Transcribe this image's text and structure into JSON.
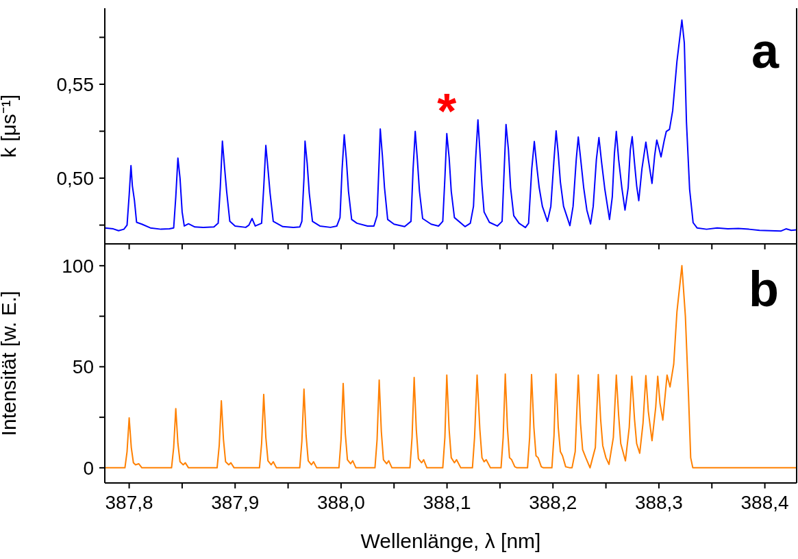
{
  "chart_data": [
    {
      "type": "line",
      "ylabel": "k [μs⁻¹]",
      "tick_labels": "y",
      "color": "#0000ff",
      "xlim": [
        387.777,
        388.43
      ],
      "xticks": [
        {
          "value": 387.8,
          "label": null
        },
        {
          "value": 387.85,
          "label": null
        },
        {
          "value": 387.9,
          "label": null
        },
        {
          "value": 387.95,
          "label": null
        },
        {
          "value": 388.0,
          "label": null
        },
        {
          "value": 388.05,
          "label": null
        },
        {
          "value": 388.1,
          "label": null
        },
        {
          "value": 388.15,
          "label": null
        },
        {
          "value": 388.2,
          "label": null
        },
        {
          "value": 388.25,
          "label": null
        },
        {
          "value": 388.3,
          "label": null
        },
        {
          "value": 388.35,
          "label": null
        },
        {
          "value": 388.4,
          "label": null
        }
      ],
      "ylim": [
        0.465,
        0.5905
      ],
      "yticks": [
        {
          "value": 0.475,
          "label": null
        },
        {
          "value": 0.5,
          "label": "0,50"
        },
        {
          "value": 0.525,
          "label": null
        },
        {
          "value": 0.55,
          "label": "0,55"
        },
        {
          "value": 0.575,
          "label": null
        }
      ],
      "annotations": [
        "a",
        {
          "text": "*",
          "x": 388.0998,
          "y": 0.5237
        }
      ],
      "x": [
        387.777,
        387.785,
        387.79,
        387.795,
        387.798,
        387.8,
        387.8017,
        387.803,
        387.805,
        387.807,
        387.812,
        387.82,
        387.83,
        387.838,
        387.842,
        387.844,
        387.846,
        387.848,
        387.85,
        387.852,
        387.856,
        387.862,
        387.87,
        387.88,
        387.884,
        387.886,
        387.888,
        387.89,
        387.892,
        387.895,
        387.9,
        387.91,
        387.913,
        387.916,
        387.919,
        387.925,
        387.927,
        387.929,
        387.931,
        387.933,
        387.936,
        387.945,
        387.955,
        387.961,
        387.963,
        387.965,
        387.966,
        387.968,
        387.97,
        387.973,
        387.98,
        387.99,
        387.996,
        387.999,
        388.001,
        388.003,
        388.005,
        388.007,
        388.01,
        388.015,
        388.025,
        388.031,
        388.034,
        388.036,
        388.037,
        388.039,
        388.041,
        388.044,
        388.05,
        388.06,
        388.066,
        388.068,
        388.07,
        388.072,
        388.074,
        388.077,
        388.085,
        388.092,
        388.096,
        388.098,
        388.0998,
        388.102,
        388.104,
        388.107,
        388.117,
        388.122,
        388.125,
        388.127,
        388.1292,
        388.131,
        388.133,
        388.135,
        388.14,
        388.1475,
        388.152,
        388.154,
        388.1557,
        388.158,
        388.16,
        388.163,
        388.168,
        388.174,
        388.177,
        388.18,
        388.1824,
        388.185,
        388.187,
        388.19,
        388.1948,
        388.198,
        388.201,
        388.203,
        388.205,
        388.207,
        388.21,
        388.216,
        388.219,
        388.222,
        388.2239,
        388.226,
        388.229,
        388.232,
        388.2355,
        388.238,
        388.241,
        388.2434,
        388.246,
        388.249,
        388.2534,
        388.256,
        388.258,
        388.2598,
        388.262,
        388.265,
        388.268,
        388.271,
        388.273,
        388.2748,
        388.277,
        388.279,
        388.281,
        388.284,
        388.2877,
        388.29,
        388.2935,
        388.296,
        388.298,
        388.3,
        388.302,
        388.305,
        388.307,
        388.31,
        388.313,
        388.317,
        388.3217,
        388.324,
        388.326,
        388.329,
        388.3323,
        388.336,
        388.345,
        388.355,
        388.365,
        388.375,
        388.385,
        388.395,
        388.405,
        388.415,
        388.42,
        388.425,
        388.43
      ],
      "values": [
        0.4735,
        0.473,
        0.472,
        0.4728,
        0.475,
        0.491,
        0.5067,
        0.496,
        0.488,
        0.4765,
        0.4755,
        0.4735,
        0.4728,
        0.473,
        0.4735,
        0.49,
        0.5107,
        0.5,
        0.482,
        0.4745,
        0.4757,
        0.474,
        0.4738,
        0.474,
        0.476,
        0.495,
        0.5197,
        0.506,
        0.493,
        0.477,
        0.4745,
        0.4738,
        0.475,
        0.4785,
        0.4745,
        0.476,
        0.495,
        0.5174,
        0.505,
        0.492,
        0.477,
        0.4742,
        0.4738,
        0.474,
        0.477,
        0.5,
        0.5197,
        0.508,
        0.492,
        0.477,
        0.4745,
        0.4738,
        0.4745,
        0.479,
        0.505,
        0.5231,
        0.51,
        0.493,
        0.478,
        0.476,
        0.4745,
        0.4745,
        0.48,
        0.51,
        0.5262,
        0.512,
        0.495,
        0.478,
        0.4755,
        0.4742,
        0.477,
        0.505,
        0.5249,
        0.51,
        0.493,
        0.4785,
        0.4755,
        0.4745,
        0.477,
        0.5,
        0.5237,
        0.511,
        0.493,
        0.479,
        0.4742,
        0.476,
        0.485,
        0.51,
        0.531,
        0.515,
        0.496,
        0.482,
        0.4765,
        0.4745,
        0.477,
        0.505,
        0.5286,
        0.515,
        0.495,
        0.48,
        0.476,
        0.4737,
        0.476,
        0.505,
        0.5195,
        0.505,
        0.495,
        0.485,
        0.477,
        0.485,
        0.51,
        0.5252,
        0.513,
        0.498,
        0.485,
        0.4747,
        0.485,
        0.51,
        0.5219,
        0.511,
        0.495,
        0.483,
        0.4756,
        0.485,
        0.51,
        0.5216,
        0.508,
        0.494,
        0.478,
        0.49,
        0.513,
        0.5249,
        0.51,
        0.495,
        0.483,
        0.495,
        0.515,
        0.5221,
        0.508,
        0.496,
        0.488,
        0.505,
        0.5192,
        0.51,
        0.4972,
        0.512,
        0.5203,
        0.516,
        0.5113,
        0.52,
        0.5249,
        0.526,
        0.5359,
        0.562,
        0.5842,
        0.572,
        0.53,
        0.494,
        0.4763,
        0.4735,
        0.4728,
        0.4735,
        0.473,
        0.4732,
        0.4728,
        0.4722,
        0.472,
        0.4718,
        0.473,
        0.4722,
        0.4725
      ]
    },
    {
      "type": "line",
      "ylabel": "Intensität [w. E.]",
      "xlabel": "Wellenlänge, λ [nm]",
      "color": "#ff8000",
      "xlim": [
        387.777,
        388.43
      ],
      "xticks": [
        {
          "value": 387.8,
          "label": "387,8"
        },
        {
          "value": 387.85,
          "label": null
        },
        {
          "value": 387.9,
          "label": "387,9"
        },
        {
          "value": 387.95,
          "label": null
        },
        {
          "value": 388.0,
          "label": "388,0"
        },
        {
          "value": 388.05,
          "label": null
        },
        {
          "value": 388.1,
          "label": "388,1"
        },
        {
          "value": 388.15,
          "label": null
        },
        {
          "value": 388.2,
          "label": "388,2"
        },
        {
          "value": 388.25,
          "label": null
        },
        {
          "value": 388.3,
          "label": "388,3"
        },
        {
          "value": 388.35,
          "label": null
        },
        {
          "value": 388.4,
          "label": "388,4"
        }
      ],
      "ylim": [
        -7.5,
        110.8
      ],
      "yticks": [
        0,
        {
          "value": 25,
          "label": null
        },
        50,
        {
          "value": 75,
          "label": null
        },
        100
      ],
      "annotations": [
        "b"
      ],
      "x": [
        387.777,
        387.796,
        387.798,
        387.8,
        387.802,
        387.804,
        387.806,
        387.809,
        387.812,
        387.84,
        387.842,
        387.844,
        387.846,
        387.848,
        387.851,
        387.853,
        387.856,
        387.883,
        387.885,
        387.887,
        387.889,
        387.891,
        387.894,
        387.896,
        387.899,
        387.923,
        387.925,
        387.927,
        387.929,
        387.931,
        387.934,
        387.936,
        387.939,
        387.961,
        387.963,
        387.965,
        387.967,
        387.969,
        387.972,
        387.974,
        387.977,
        387.998,
        388.0,
        388.002,
        388.004,
        388.006,
        388.009,
        388.011,
        388.014,
        388.032,
        388.034,
        388.036,
        388.038,
        388.04,
        388.043,
        388.045,
        388.048,
        388.065,
        388.067,
        388.069,
        388.071,
        388.073,
        388.076,
        388.078,
        388.081,
        388.096,
        388.098,
        388.0998,
        388.102,
        388.104,
        388.107,
        388.109,
        388.113,
        388.124,
        388.126,
        388.1284,
        388.131,
        388.133,
        388.135,
        388.137,
        388.141,
        388.151,
        388.153,
        388.155,
        388.157,
        388.159,
        388.161,
        388.164,
        388.166,
        388.176,
        388.178,
        388.1798,
        388.182,
        388.184,
        388.186,
        388.189,
        388.191,
        388.199,
        388.201,
        388.2028,
        388.205,
        388.207,
        388.209,
        388.212,
        388.216,
        388.218,
        388.221,
        388.2239,
        388.226,
        388.228,
        388.231,
        388.235,
        388.24,
        388.2428,
        388.245,
        388.247,
        388.25,
        388.2529,
        388.257,
        388.2598,
        388.262,
        388.264,
        388.2684,
        388.272,
        388.2744,
        388.277,
        388.279,
        388.2819,
        388.285,
        388.2877,
        388.29,
        388.2935,
        388.297,
        388.2989,
        388.301,
        388.3037,
        388.3077,
        388.3105,
        388.314,
        388.317,
        388.3217,
        388.325,
        388.328,
        388.33,
        388.332,
        388.43
      ],
      "values": [
        0,
        0,
        8,
        24.7,
        10,
        2.5,
        1.5,
        2,
        0,
        0,
        10,
        29.3,
        12,
        3,
        1.5,
        2.5,
        0,
        0,
        11,
        33.2,
        14,
        3,
        1.5,
        2.5,
        0,
        0,
        12,
        36.3,
        15,
        3.5,
        1.5,
        3,
        0,
        0,
        13,
        38.9,
        16,
        3.5,
        1.5,
        3,
        0,
        0,
        14,
        41.7,
        17,
        4,
        2,
        3.5,
        0,
        0,
        14,
        43.4,
        18,
        4,
        2,
        3.5,
        0,
        0,
        15,
        44.7,
        19,
        4.5,
        2.5,
        4,
        0,
        0,
        15,
        45.9,
        19,
        5,
        2.5,
        4,
        0,
        0,
        15,
        45.9,
        19,
        5,
        3,
        4,
        0,
        0,
        15,
        46.4,
        20,
        5,
        4,
        0.5,
        0,
        0,
        15,
        46.1,
        20,
        6,
        5,
        0.5,
        0,
        0,
        16,
        46.4,
        20,
        8,
        6,
        0.5,
        0,
        0,
        8,
        45.9,
        22,
        9,
        5,
        0,
        10,
        46.1,
        24,
        11,
        5,
        1.7,
        15,
        45.9,
        26,
        12,
        3.4,
        20,
        45.3,
        24,
        12,
        7.2,
        22,
        45.6,
        28,
        13.4,
        30,
        45.3,
        32,
        23.6,
        45.9,
        40,
        51.3,
        77,
        100,
        75,
        35,
        5,
        0,
        0
      ]
    }
  ]
}
